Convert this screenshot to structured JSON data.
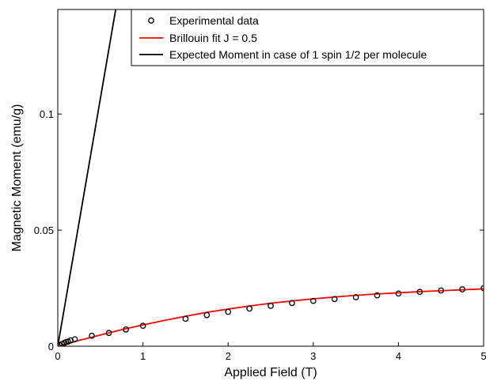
{
  "chart_data": {
    "type": "line",
    "title": "",
    "xlabel": "Applied Field (T)",
    "ylabel": "Magnetic Moment (emu/g)",
    "xlim": [
      0,
      5
    ],
    "ylim": [
      0,
      0.145
    ],
    "xticks": [
      0,
      1,
      2,
      3,
      4,
      5
    ],
    "xtick_labels": [
      "0",
      "1",
      "2",
      "3",
      "4",
      "5"
    ],
    "yticks": [
      0,
      0.05,
      0.1
    ],
    "ytick_labels": [
      "0",
      "0.05",
      "0.1"
    ],
    "grid": false,
    "legend_position": "top-right",
    "series": [
      {
        "name": "Experimental data",
        "style": "markers",
        "marker": "open-circle",
        "color": "#000000",
        "x": [
          0.0,
          0.02,
          0.05,
          0.08,
          0.1,
          0.12,
          0.15,
          0.2,
          0.4,
          0.6,
          0.8,
          1.0,
          1.5,
          1.75,
          2.0,
          2.25,
          2.5,
          2.75,
          3.0,
          3.25,
          3.5,
          3.75,
          4.0,
          4.25,
          4.5,
          4.75,
          5.0
        ],
        "y": [
          0.0,
          0.0005,
          0.001,
          0.0015,
          0.0018,
          0.002,
          0.0025,
          0.003,
          0.0045,
          0.0057,
          0.0072,
          0.0088,
          0.0118,
          0.0134,
          0.0148,
          0.0162,
          0.0174,
          0.0186,
          0.0195,
          0.0203,
          0.0211,
          0.0219,
          0.0227,
          0.0234,
          0.024,
          0.0245,
          0.025
        ]
      },
      {
        "name": "Brillouin fit J = 0.5",
        "style": "line",
        "color": "#ff0000",
        "x": [
          0.0,
          0.25,
          0.5,
          0.75,
          1.0,
          1.25,
          1.5,
          1.75,
          2.0,
          2.25,
          2.5,
          2.75,
          3.0,
          3.25,
          3.5,
          3.75,
          4.0,
          4.25,
          4.5,
          4.75,
          5.0
        ],
        "y": [
          0.0,
          0.0025,
          0.0048,
          0.0071,
          0.0092,
          0.0111,
          0.0129,
          0.0146,
          0.016,
          0.0173,
          0.0185,
          0.0195,
          0.0204,
          0.0212,
          0.0219,
          0.0225,
          0.023,
          0.0235,
          0.0239,
          0.0243,
          0.0247
        ]
      },
      {
        "name": "Expected Moment in case of 1 spin 1/2 per molecule",
        "style": "line",
        "color": "#000000",
        "x": [
          0.0,
          0.68
        ],
        "y": [
          0.0,
          0.145
        ]
      }
    ]
  }
}
